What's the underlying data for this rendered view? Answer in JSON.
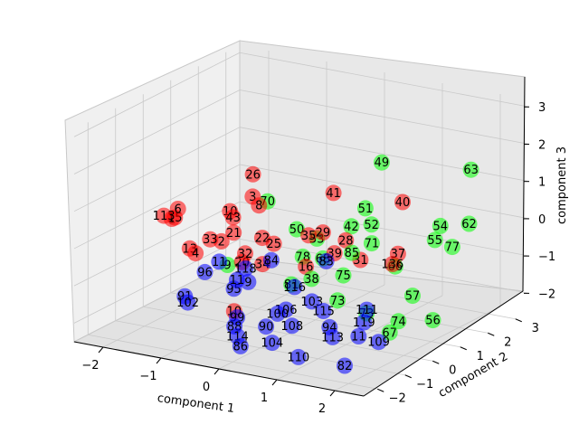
{
  "chart_data": {
    "type": "scatter",
    "projection": "3d",
    "xlabel": "component 1",
    "ylabel": "component 2",
    "zlabel": "component 3",
    "xticks": [
      -2,
      -1,
      0,
      1,
      2
    ],
    "yticks": [
      -2,
      -1,
      0,
      1,
      2,
      3
    ],
    "zticks": [
      -2,
      -1,
      0,
      1,
      2,
      3
    ],
    "xlim": [
      -2.5,
      2.5
    ],
    "ylim": [
      -2.5,
      3.5
    ],
    "zlim": [
      -2.5,
      3.2
    ],
    "grid": true,
    "legend": "none",
    "series": [
      {
        "color": "#ff0000",
        "points": [
          {
            "label": "26",
            "x": -0.7,
            "y": 0.2,
            "z": 1.5
          },
          {
            "label": "41",
            "x": 0.5,
            "y": 0.6,
            "z": 1.2
          },
          {
            "label": "40",
            "x": 1.6,
            "y": 0.8,
            "z": 1.2
          },
          {
            "label": "3",
            "x": -0.8,
            "y": 0.4,
            "z": 0.8
          },
          {
            "label": "8",
            "x": -0.5,
            "y": 0.0,
            "z": 0.8
          },
          {
            "label": "10",
            "x": -1.0,
            "y": 0.0,
            "z": 0.5
          },
          {
            "label": "43",
            "x": -0.9,
            "y": -0.1,
            "z": 0.4
          },
          {
            "label": "6",
            "x": -1.9,
            "y": 0.0,
            "z": 0.3
          },
          {
            "label": "113",
            "x": -2.0,
            "y": -0.3,
            "z": 0.2
          },
          {
            "label": "21",
            "x": -0.7,
            "y": -0.5,
            "z": 0.2
          },
          {
            "label": "22",
            "x": -0.3,
            "y": -0.3,
            "z": 0.1
          },
          {
            "label": "25",
            "x": -0.1,
            "y": -0.3,
            "z": 0.0
          },
          {
            "label": "29",
            "x": 0.7,
            "y": -0.2,
            "z": 0.5
          },
          {
            "label": "35",
            "x": 0.5,
            "y": -0.3,
            "z": 0.4
          },
          {
            "label": "28",
            "x": 1.0,
            "y": 0.0,
            "z": 0.3
          },
          {
            "label": "37",
            "x": 1.9,
            "y": 0.0,
            "z": 0.2
          },
          {
            "label": "136",
            "x": 1.9,
            "y": -0.2,
            "z": 0.0
          },
          {
            "label": "15",
            "x": -2.0,
            "y": 0.1,
            "z": 0.0
          },
          {
            "label": "1",
            "x": -2.1,
            "y": 0.2,
            "z": -0.1
          },
          {
            "label": "33",
            "x": -1.2,
            "y": -0.3,
            "z": -0.2
          },
          {
            "label": "2",
            "x": -1.1,
            "y": -0.1,
            "z": -0.3
          },
          {
            "label": "13",
            "x": -1.6,
            "y": -0.2,
            "z": -0.6
          },
          {
            "label": "4",
            "x": -1.5,
            "y": -0.2,
            "z": -0.7
          },
          {
            "label": "32",
            "x": -0.5,
            "y": -0.5,
            "z": -0.3
          },
          {
            "label": "20",
            "x": -0.6,
            "y": -0.4,
            "z": -0.6
          },
          {
            "label": "34",
            "x": -0.2,
            "y": -0.5,
            "z": -0.5
          },
          {
            "label": "39",
            "x": 0.9,
            "y": -0.2,
            "z": 0.0
          },
          {
            "label": "31",
            "x": 1.3,
            "y": -0.1,
            "z": -0.1
          },
          {
            "label": "16",
            "x": 0.5,
            "y": -0.4,
            "z": -0.4
          },
          {
            "label": "10",
            "x": -0.5,
            "y": -0.9,
            "z": -1.7
          }
        ]
      },
      {
        "color": "#00ff00",
        "points": [
          {
            "label": "49",
            "x": 1.0,
            "y": 1.3,
            "z": 1.9
          },
          {
            "label": "63",
            "x": 2.4,
            "y": 1.6,
            "z": 2.0
          },
          {
            "label": "70",
            "x": -0.4,
            "y": 0.1,
            "z": 0.9
          },
          {
            "label": "51",
            "x": 1.1,
            "y": 0.5,
            "z": 1.0
          },
          {
            "label": "54",
            "x": 2.3,
            "y": 0.7,
            "z": 0.8
          },
          {
            "label": "62",
            "x": 2.7,
            "y": 0.9,
            "z": 0.9
          },
          {
            "label": "42",
            "x": 1.0,
            "y": 0.2,
            "z": 0.6
          },
          {
            "label": "52",
            "x": 1.3,
            "y": 0.3,
            "z": 0.7
          },
          {
            "label": "55",
            "x": 2.3,
            "y": 0.5,
            "z": 0.5
          },
          {
            "label": "77",
            "x": 2.6,
            "y": 0.5,
            "z": 0.4
          },
          {
            "label": "50",
            "x": 0.2,
            "y": -0.1,
            "z": 0.4
          },
          {
            "label": "53",
            "x": 0.5,
            "y": 0.0,
            "z": 0.2
          },
          {
            "label": "71",
            "x": 1.4,
            "y": 0.1,
            "z": 0.3
          },
          {
            "label": "85",
            "x": 1.2,
            "y": -0.2,
            "z": 0.1
          },
          {
            "label": "66",
            "x": 1.9,
            "y": -0.1,
            "z": -0.1
          },
          {
            "label": "75",
            "x": 1.1,
            "y": -0.3,
            "z": -0.5
          },
          {
            "label": "57",
            "x": 2.2,
            "y": -0.1,
            "z": -0.8
          },
          {
            "label": "74",
            "x": 2.1,
            "y": -0.4,
            "z": -1.4
          },
          {
            "label": "56",
            "x": 2.6,
            "y": -0.2,
            "z": -1.3
          },
          {
            "label": "78",
            "x": 0.4,
            "y": -0.3,
            "z": -0.2
          },
          {
            "label": "68",
            "x": 0.7,
            "y": -0.2,
            "z": -0.2
          },
          {
            "label": "81",
            "x": 0.3,
            "y": -0.5,
            "z": -0.9
          },
          {
            "label": "38",
            "x": 0.6,
            "y": -0.4,
            "z": -0.7
          },
          {
            "label": "73",
            "x": 1.0,
            "y": -0.3,
            "z": -1.2
          },
          {
            "label": "73",
            "x": 1.5,
            "y": -0.3,
            "z": -1.4
          },
          {
            "label": "67",
            "x": 1.9,
            "y": -0.3,
            "z": -1.8
          },
          {
            "label": "9",
            "x": -0.9,
            "y": -0.3,
            "z": -0.8
          }
        ]
      },
      {
        "color": "#0000ff",
        "points": [
          {
            "label": "84",
            "x": 0.0,
            "y": -0.6,
            "z": -0.3
          },
          {
            "label": "83",
            "x": 0.9,
            "y": -0.5,
            "z": -0.1
          },
          {
            "label": "11",
            "x": -0.9,
            "y": -0.6,
            "z": -0.6
          },
          {
            "label": "118",
            "x": -0.4,
            "y": -0.7,
            "z": -0.6
          },
          {
            "label": "96",
            "x": -1.1,
            "y": -0.7,
            "z": -0.9
          },
          {
            "label": "11",
            "x": -0.5,
            "y": -0.8,
            "z": -0.9
          },
          {
            "label": "116",
            "x": 0.4,
            "y": -0.6,
            "z": -0.9
          },
          {
            "label": "9",
            "x": -0.4,
            "y": -0.6,
            "z": -1.0
          },
          {
            "label": "95",
            "x": -0.6,
            "y": -0.7,
            "z": -1.2
          },
          {
            "label": "103",
            "x": 0.7,
            "y": -0.6,
            "z": -1.2
          },
          {
            "label": "111",
            "x": 1.6,
            "y": -0.5,
            "z": -1.2
          },
          {
            "label": "106",
            "x": 0.3,
            "y": -0.7,
            "z": -1.5
          },
          {
            "label": "115",
            "x": 0.9,
            "y": -0.6,
            "z": -1.4
          },
          {
            "label": "119",
            "x": 1.6,
            "y": -0.6,
            "z": -1.5
          },
          {
            "label": "91",
            "x": -1.4,
            "y": -0.8,
            "z": -1.6
          },
          {
            "label": "102",
            "x": -1.3,
            "y": -0.9,
            "z": -1.7
          },
          {
            "label": "100",
            "x": 0.2,
            "y": -0.8,
            "z": -1.6
          },
          {
            "label": "108",
            "x": 0.5,
            "y": -0.9,
            "z": -1.8
          },
          {
            "label": "94",
            "x": 1.1,
            "y": -0.8,
            "z": -1.7
          },
          {
            "label": "99",
            "x": -0.4,
            "y": -1.0,
            "z": -1.8
          },
          {
            "label": "90",
            "x": 0.1,
            "y": -1.0,
            "z": -1.9
          },
          {
            "label": "113",
            "x": 1.2,
            "y": -0.9,
            "z": -1.9
          },
          {
            "label": "11",
            "x": 1.6,
            "y": -0.8,
            "z": -1.8
          },
          {
            "label": "109",
            "x": 1.9,
            "y": -0.7,
            "z": -1.9
          },
          {
            "label": "88",
            "x": -0.4,
            "y": -1.1,
            "z": -2.0
          },
          {
            "label": "114",
            "x": -0.3,
            "y": -1.2,
            "z": -2.2
          },
          {
            "label": "104",
            "x": 0.3,
            "y": -1.2,
            "z": -2.2
          },
          {
            "label": "86",
            "x": -0.2,
            "y": -1.3,
            "z": -2.4
          },
          {
            "label": "110",
            "x": 0.8,
            "y": -1.3,
            "z": -2.4
          },
          {
            "label": "82",
            "x": 1.6,
            "y": -1.3,
            "z": -2.4
          }
        ]
      }
    ]
  }
}
